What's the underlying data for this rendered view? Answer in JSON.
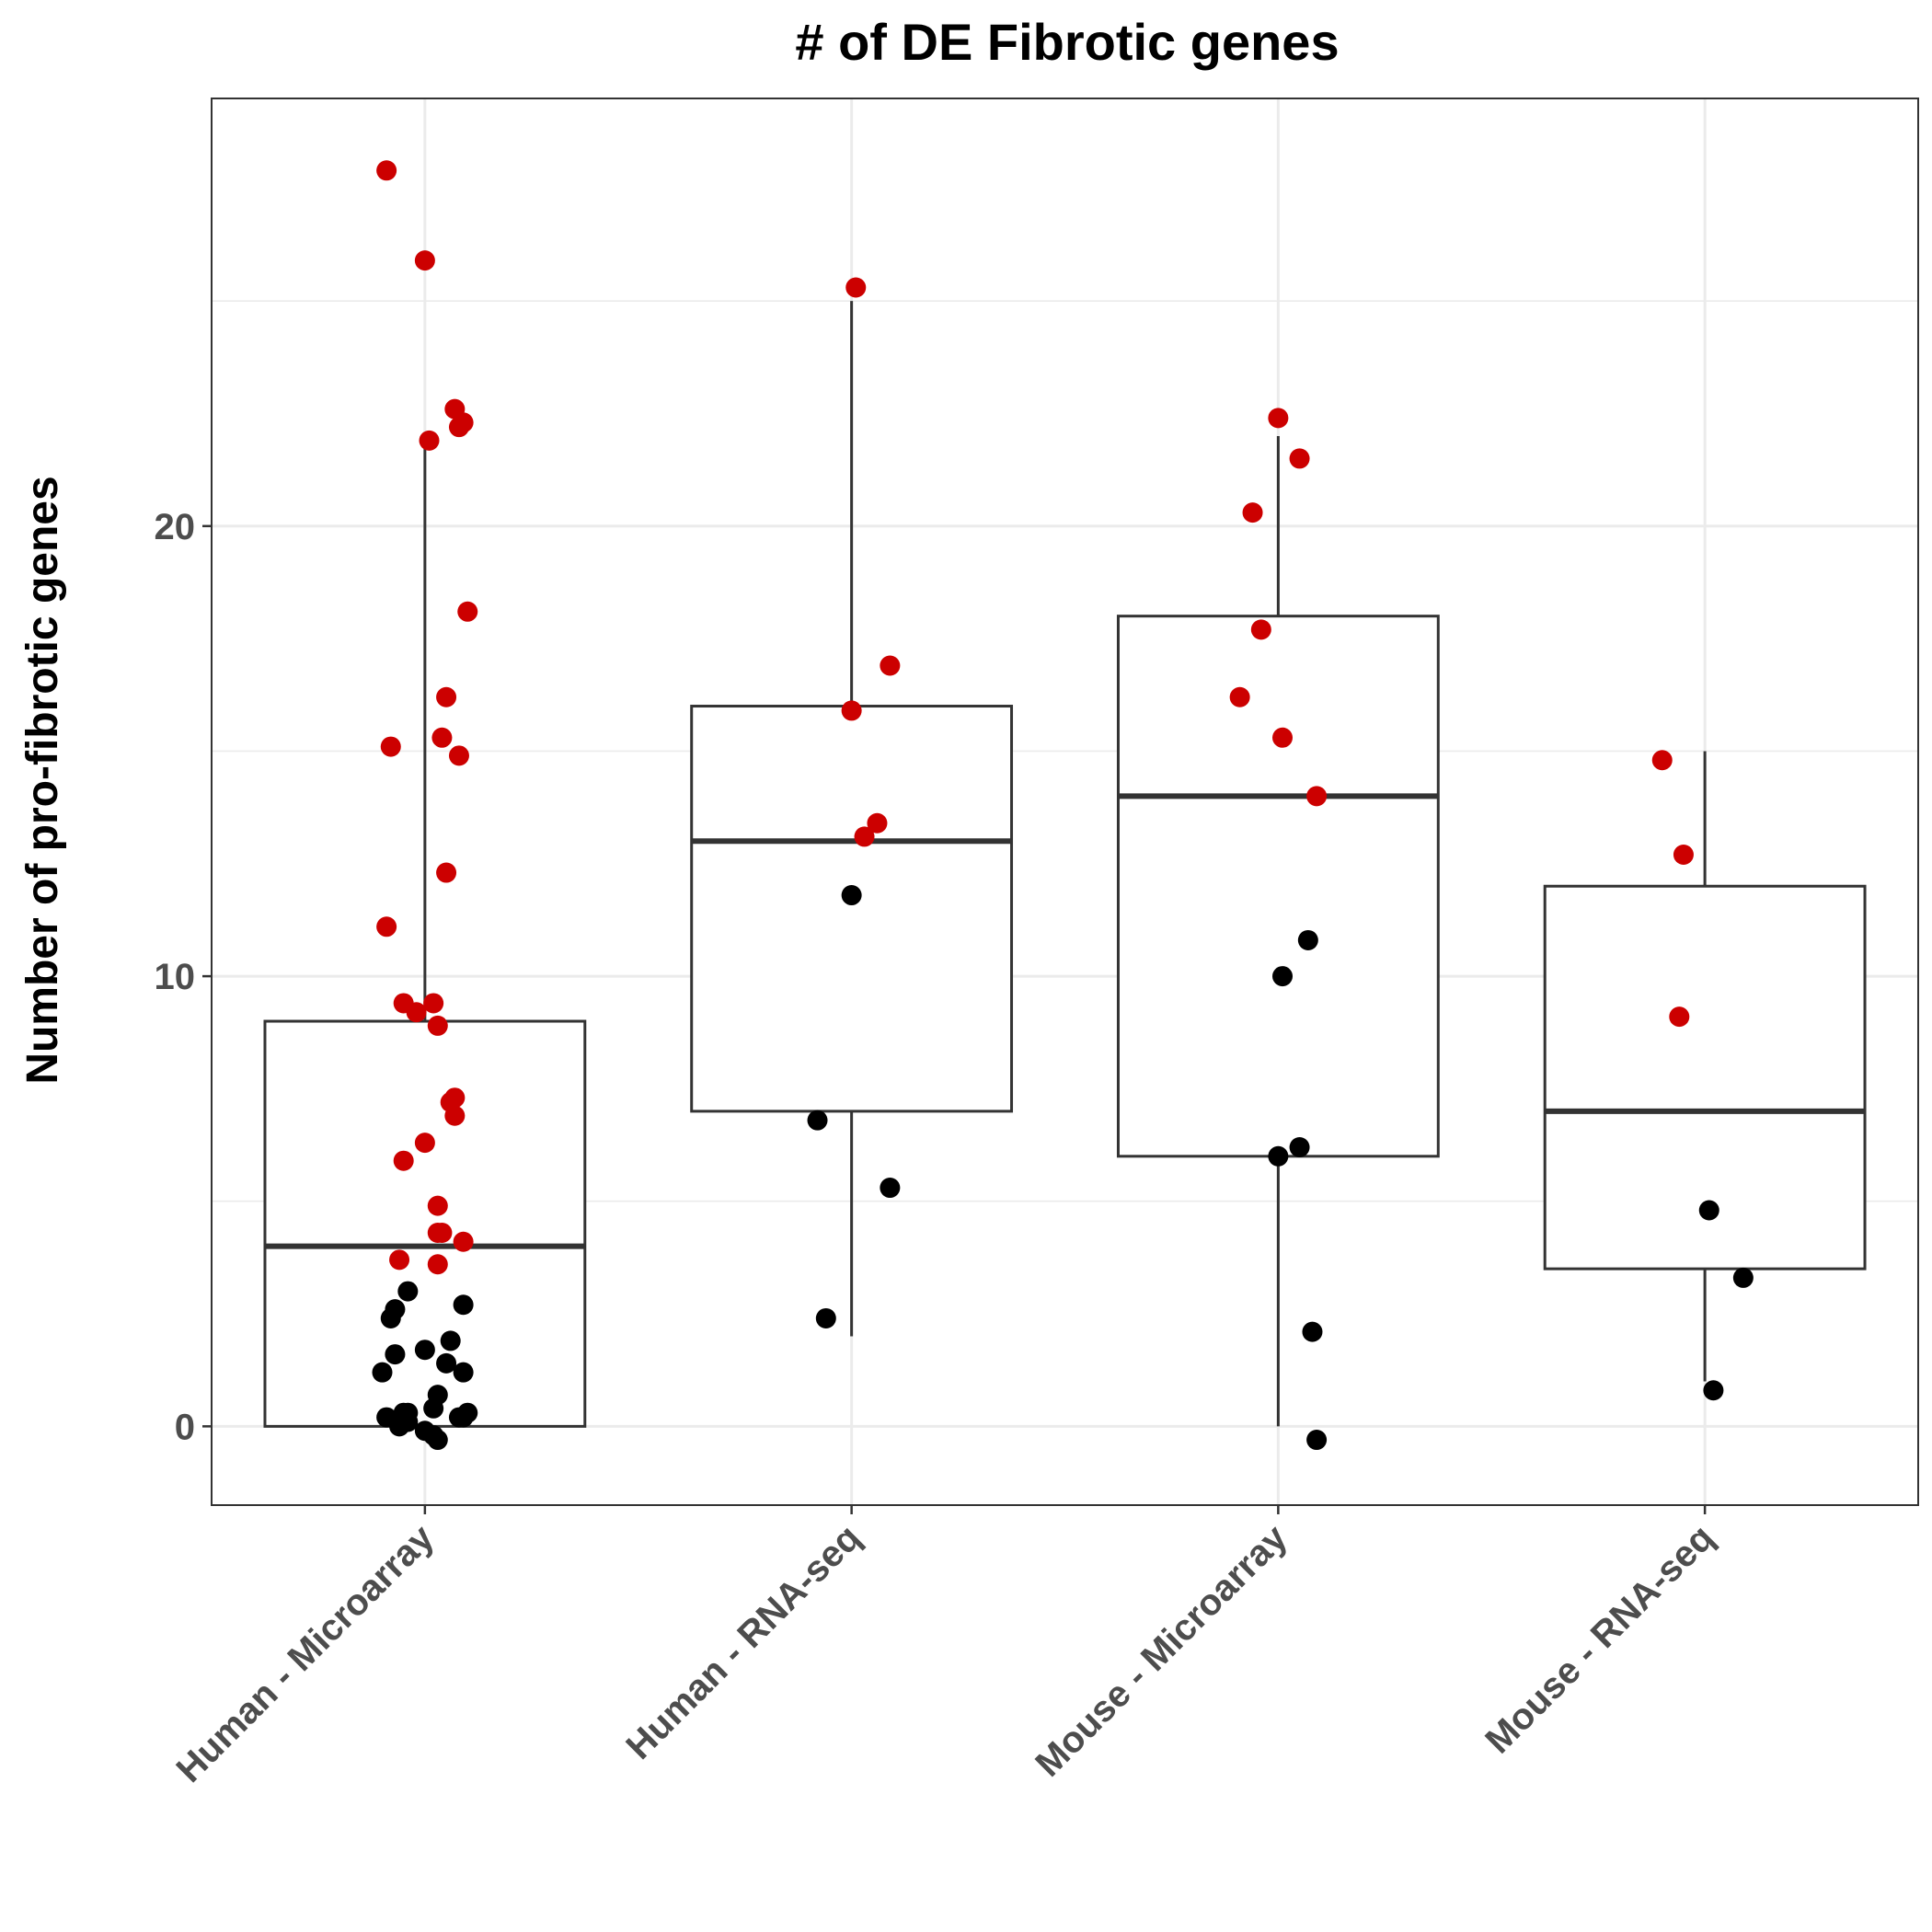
{
  "chart_data": {
    "type": "box",
    "title": "# of DE Fibrotic genes",
    "xlabel": "",
    "ylabel": "Number of pro-fibrotic genes",
    "ylim": [
      -1.75,
      29.5
    ],
    "yticks": [
      0,
      10,
      20
    ],
    "grid": true,
    "legend": "none",
    "colors": {
      "up": "#cc0000",
      "down": "#000000",
      "box": "#333333",
      "grid": "#ebebeb"
    },
    "categories": [
      "Human - Microarray",
      "Human - RNA-seq",
      "Mouse - Microarray",
      "Mouse - RNA-seq"
    ],
    "boxes": [
      {
        "q1": 0,
        "median": 4,
        "q3": 9,
        "whisker_low": 0,
        "whisker_high": 22
      },
      {
        "q1": 7,
        "median": 13,
        "q3": 16,
        "whisker_low": 2,
        "whisker_high": 25
      },
      {
        "q1": 6,
        "median": 14,
        "q3": 18,
        "whisker_low": 0,
        "whisker_high": 22
      },
      {
        "q1": 3.5,
        "median": 7,
        "q3": 12,
        "whisker_low": 1,
        "whisker_high": 15
      }
    ],
    "points": [
      [
        {
          "x": -0.09,
          "y": 27.9,
          "c": "up"
        },
        {
          "x": 0.0,
          "y": 25.9,
          "c": "up"
        },
        {
          "x": 0.07,
          "y": 22.6,
          "c": "up"
        },
        {
          "x": 0.09,
          "y": 22.3,
          "c": "up"
        },
        {
          "x": 0.08,
          "y": 22.2,
          "c": "up"
        },
        {
          "x": 0.01,
          "y": 21.9,
          "c": "up"
        },
        {
          "x": 0.1,
          "y": 18.1,
          "c": "up"
        },
        {
          "x": 0.05,
          "y": 16.2,
          "c": "up"
        },
        {
          "x": 0.04,
          "y": 15.3,
          "c": "up"
        },
        {
          "x": -0.08,
          "y": 15.1,
          "c": "up"
        },
        {
          "x": 0.08,
          "y": 14.9,
          "c": "up"
        },
        {
          "x": 0.05,
          "y": 12.3,
          "c": "up"
        },
        {
          "x": -0.09,
          "y": 11.1,
          "c": "up"
        },
        {
          "x": -0.05,
          "y": 9.4,
          "c": "up"
        },
        {
          "x": 0.02,
          "y": 9.4,
          "c": "up"
        },
        {
          "x": -0.02,
          "y": 9.2,
          "c": "up"
        },
        {
          "x": 0.03,
          "y": 8.9,
          "c": "up"
        },
        {
          "x": 0.07,
          "y": 7.3,
          "c": "up"
        },
        {
          "x": 0.06,
          "y": 7.2,
          "c": "up"
        },
        {
          "x": 0.07,
          "y": 6.9,
          "c": "up"
        },
        {
          "x": 0.0,
          "y": 6.3,
          "c": "up"
        },
        {
          "x": -0.05,
          "y": 5.9,
          "c": "up"
        },
        {
          "x": 0.03,
          "y": 4.9,
          "c": "up"
        },
        {
          "x": 0.03,
          "y": 4.3,
          "c": "up"
        },
        {
          "x": 0.04,
          "y": 4.3,
          "c": "up"
        },
        {
          "x": 0.09,
          "y": 4.1,
          "c": "up"
        },
        {
          "x": -0.06,
          "y": 3.7,
          "c": "up"
        },
        {
          "x": 0.03,
          "y": 3.6,
          "c": "up"
        },
        {
          "x": -0.04,
          "y": 3.0,
          "c": "down"
        },
        {
          "x": 0.09,
          "y": 2.7,
          "c": "down"
        },
        {
          "x": -0.07,
          "y": 2.6,
          "c": "down"
        },
        {
          "x": -0.08,
          "y": 2.4,
          "c": "down"
        },
        {
          "x": 0.06,
          "y": 1.9,
          "c": "down"
        },
        {
          "x": -0.07,
          "y": 1.6,
          "c": "down"
        },
        {
          "x": 0.0,
          "y": 1.7,
          "c": "down"
        },
        {
          "x": 0.05,
          "y": 1.4,
          "c": "down"
        },
        {
          "x": -0.1,
          "y": 1.2,
          "c": "down"
        },
        {
          "x": 0.09,
          "y": 1.2,
          "c": "down"
        },
        {
          "x": 0.03,
          "y": 0.7,
          "c": "down"
        },
        {
          "x": 0.02,
          "y": 0.4,
          "c": "down"
        },
        {
          "x": -0.05,
          "y": 0.3,
          "c": "down"
        },
        {
          "x": -0.04,
          "y": 0.3,
          "c": "down"
        },
        {
          "x": 0.1,
          "y": 0.3,
          "c": "down"
        },
        {
          "x": -0.09,
          "y": 0.2,
          "c": "down"
        },
        {
          "x": 0.08,
          "y": 0.2,
          "c": "down"
        },
        {
          "x": 0.09,
          "y": 0.2,
          "c": "down"
        },
        {
          "x": -0.06,
          "y": 0.0,
          "c": "down"
        },
        {
          "x": -0.04,
          "y": 0.1,
          "c": "down"
        },
        {
          "x": 0.0,
          "y": -0.1,
          "c": "down"
        },
        {
          "x": 0.02,
          "y": -0.2,
          "c": "down"
        },
        {
          "x": 0.03,
          "y": -0.3,
          "c": "down"
        }
      ],
      [
        {
          "x": 0.01,
          "y": 25.3,
          "c": "up"
        },
        {
          "x": 0.09,
          "y": 16.9,
          "c": "up"
        },
        {
          "x": 0.0,
          "y": 15.9,
          "c": "up"
        },
        {
          "x": 0.06,
          "y": 13.4,
          "c": "up"
        },
        {
          "x": 0.03,
          "y": 13.1,
          "c": "up"
        },
        {
          "x": 0.0,
          "y": 11.8,
          "c": "down"
        },
        {
          "x": -0.08,
          "y": 6.8,
          "c": "down"
        },
        {
          "x": 0.09,
          "y": 5.3,
          "c": "down"
        },
        {
          "x": -0.06,
          "y": 2.4,
          "c": "down"
        }
      ],
      [
        {
          "x": 0.0,
          "y": 22.4,
          "c": "up"
        },
        {
          "x": 0.05,
          "y": 21.5,
          "c": "up"
        },
        {
          "x": -0.06,
          "y": 20.3,
          "c": "up"
        },
        {
          "x": -0.04,
          "y": 17.7,
          "c": "up"
        },
        {
          "x": -0.09,
          "y": 16.2,
          "c": "up"
        },
        {
          "x": 0.01,
          "y": 15.3,
          "c": "up"
        },
        {
          "x": 0.09,
          "y": 14.0,
          "c": "up"
        },
        {
          "x": 0.07,
          "y": 10.8,
          "c": "down"
        },
        {
          "x": 0.01,
          "y": 10.0,
          "c": "down"
        },
        {
          "x": 0.05,
          "y": 6.2,
          "c": "down"
        },
        {
          "x": 0.0,
          "y": 6.0,
          "c": "down"
        },
        {
          "x": 0.08,
          "y": 2.1,
          "c": "down"
        },
        {
          "x": 0.09,
          "y": -0.3,
          "c": "down"
        }
      ],
      [
        {
          "x": -0.1,
          "y": 14.8,
          "c": "up"
        },
        {
          "x": -0.05,
          "y": 12.7,
          "c": "up"
        },
        {
          "x": -0.06,
          "y": 9.1,
          "c": "up"
        },
        {
          "x": 0.01,
          "y": 4.8,
          "c": "down"
        },
        {
          "x": 0.09,
          "y": 3.3,
          "c": "down"
        },
        {
          "x": 0.02,
          "y": 0.8,
          "c": "down"
        }
      ]
    ]
  }
}
